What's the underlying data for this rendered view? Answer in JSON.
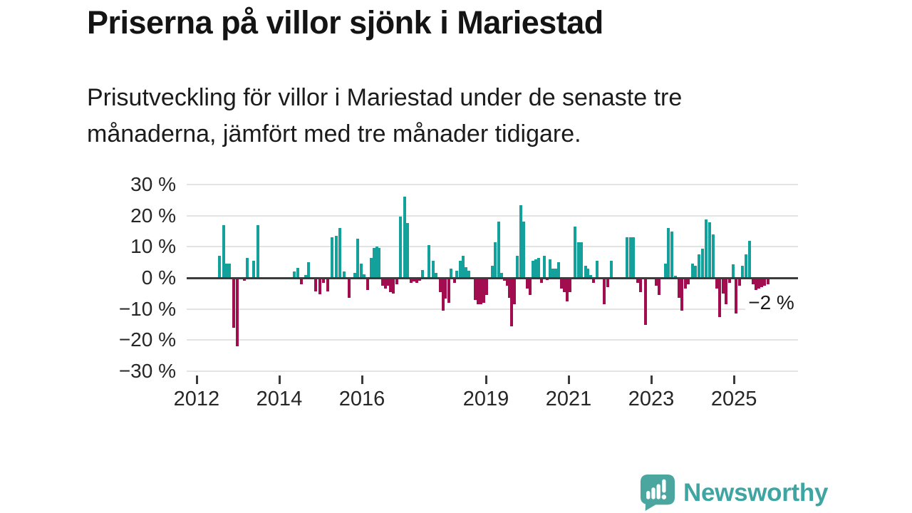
{
  "header": {
    "title": "Priserna på villor sjönk i Mariestad",
    "subtitle_line1": "Prisutveckling för villor i Mariestad under de senaste tre",
    "subtitle_line2": "månaderna, jämfört med tre månader tidigare."
  },
  "branding": {
    "name": "Newsworthy",
    "icon": "newsworthy-speech-bubble-chart-icon",
    "icon_color": "#4ba6a0",
    "text_color": "#3fa5a2"
  },
  "chart_data": {
    "type": "bar",
    "title": "Prisutveckling för villor i Mariestad, 3 månader jämfört med tre månader tidigare",
    "unit": "%",
    "grid": true,
    "colors": {
      "positive": "#14a09b",
      "negative": "#a20d50",
      "zero_line": "#3b3b3b",
      "gridline": "#e3e3e3"
    },
    "x_axis": {
      "min": 2011.76,
      "max": 2026.55
    },
    "y_axis": {
      "min": -30,
      "max": 30,
      "step": 10,
      "ticks": [
        {
          "value": 30,
          "label": "30 %"
        },
        {
          "value": 20,
          "label": "20 %"
        },
        {
          "value": 10,
          "label": "10 %"
        },
        {
          "value": 0,
          "label": "0 %"
        },
        {
          "value": -10,
          "label": "−10 %"
        },
        {
          "value": -20,
          "label": "−20 %"
        },
        {
          "value": -30,
          "label": "−30 %"
        }
      ]
    },
    "x_ticks": [
      {
        "year": 2012,
        "label": "2012"
      },
      {
        "year": 2014,
        "label": "2014"
      },
      {
        "year": 2016,
        "label": "2016"
      },
      {
        "year": 2019,
        "label": "2019"
      },
      {
        "year": 2021,
        "label": "2021"
      },
      {
        "year": 2023,
        "label": "2023"
      },
      {
        "year": 2025,
        "label": "2025"
      }
    ],
    "annotation": {
      "text": "−2 %",
      "x": 2025.83,
      "value": -2
    },
    "points": [
      [
        2012.55,
        7
      ],
      [
        2012.66,
        17
      ],
      [
        2012.72,
        4.5
      ],
      [
        2012.79,
        4.5
      ],
      [
        2012.9,
        -16
      ],
      [
        2012.98,
        -22
      ],
      [
        2013.16,
        -1
      ],
      [
        2013.22,
        6.5
      ],
      [
        2013.38,
        5.5
      ],
      [
        2013.48,
        17
      ],
      [
        2014.36,
        2
      ],
      [
        2014.45,
        3.2
      ],
      [
        2014.53,
        -2
      ],
      [
        2014.64,
        1
      ],
      [
        2014.71,
        5
      ],
      [
        2014.88,
        -4.4
      ],
      [
        2014.98,
        -5.2
      ],
      [
        2015.07,
        -1.5
      ],
      [
        2015.17,
        -4.4
      ],
      [
        2015.28,
        13
      ],
      [
        2015.38,
        13.5
      ],
      [
        2015.47,
        16
      ],
      [
        2015.57,
        2
      ],
      [
        2015.69,
        -6.5
      ],
      [
        2015.83,
        1.5
      ],
      [
        2015.9,
        12.5
      ],
      [
        2015.98,
        4.6
      ],
      [
        2016.05,
        1.2
      ],
      [
        2016.14,
        -4
      ],
      [
        2016.22,
        6.4
      ],
      [
        2016.29,
        9.6
      ],
      [
        2016.36,
        10
      ],
      [
        2016.41,
        9.6
      ],
      [
        2016.5,
        -2.6
      ],
      [
        2016.57,
        -3.4
      ],
      [
        2016.62,
        -2.6
      ],
      [
        2016.69,
        -4.5
      ],
      [
        2016.76,
        -5
      ],
      [
        2016.84,
        -2
      ],
      [
        2016.93,
        19.7
      ],
      [
        2017.03,
        26
      ],
      [
        2017.1,
        17.7
      ],
      [
        2017.19,
        -1.5
      ],
      [
        2017.26,
        -1.2
      ],
      [
        2017.33,
        -1.6
      ],
      [
        2017.4,
        -1
      ],
      [
        2017.47,
        2.5
      ],
      [
        2017.62,
        10.6
      ],
      [
        2017.72,
        5.6
      ],
      [
        2017.79,
        1.6
      ],
      [
        2017.9,
        -4.6
      ],
      [
        2017.97,
        -10.6
      ],
      [
        2018.02,
        -6.6
      ],
      [
        2018.1,
        -8.1
      ],
      [
        2018.16,
        3
      ],
      [
        2018.24,
        -1.6
      ],
      [
        2018.29,
        2.4
      ],
      [
        2018.38,
        5.4
      ],
      [
        2018.45,
        7
      ],
      [
        2018.52,
        3.5
      ],
      [
        2018.59,
        2.4
      ],
      [
        2018.74,
        -7
      ],
      [
        2018.81,
        -8.4
      ],
      [
        2018.88,
        -8.4
      ],
      [
        2018.95,
        -8
      ],
      [
        2019.02,
        -5.5
      ],
      [
        2019.16,
        4
      ],
      [
        2019.22,
        11.5
      ],
      [
        2019.31,
        18
      ],
      [
        2019.38,
        1.5
      ],
      [
        2019.45,
        -1
      ],
      [
        2019.52,
        -2.5
      ],
      [
        2019.57,
        -6.5
      ],
      [
        2019.62,
        -15.5
      ],
      [
        2019.69,
        -8.5
      ],
      [
        2019.76,
        7
      ],
      [
        2019.84,
        23.3
      ],
      [
        2019.91,
        18
      ],
      [
        2020.0,
        -3.5
      ],
      [
        2020.07,
        -5.5
      ],
      [
        2020.14,
        5.5
      ],
      [
        2020.21,
        6
      ],
      [
        2020.28,
        6.5
      ],
      [
        2020.34,
        -1.5
      ],
      [
        2020.41,
        7
      ],
      [
        2020.48,
        -0.8
      ],
      [
        2020.55,
        6
      ],
      [
        2020.62,
        3
      ],
      [
        2020.69,
        3
      ],
      [
        2020.76,
        5
      ],
      [
        2020.83,
        -3.5
      ],
      [
        2020.9,
        -4.5
      ],
      [
        2020.97,
        -7.5
      ],
      [
        2021.03,
        -4.5
      ],
      [
        2021.16,
        16.5
      ],
      [
        2021.24,
        11.5
      ],
      [
        2021.31,
        11.5
      ],
      [
        2021.41,
        4
      ],
      [
        2021.47,
        3
      ],
      [
        2021.53,
        1
      ],
      [
        2021.6,
        -1.5
      ],
      [
        2021.69,
        5.5
      ],
      [
        2021.86,
        -8.5
      ],
      [
        2021.95,
        -3
      ],
      [
        2022.03,
        5.5
      ],
      [
        2022.41,
        13
      ],
      [
        2022.5,
        13
      ],
      [
        2022.57,
        13
      ],
      [
        2022.67,
        -1.5
      ],
      [
        2022.74,
        -4.5
      ],
      [
        2022.86,
        -15
      ],
      [
        2023.12,
        -2.5
      ],
      [
        2023.19,
        -5.5
      ],
      [
        2023.34,
        4.5
      ],
      [
        2023.41,
        16
      ],
      [
        2023.5,
        15
      ],
      [
        2023.59,
        0.8
      ],
      [
        2023.67,
        -6.5
      ],
      [
        2023.74,
        -10.5
      ],
      [
        2023.83,
        -3.5
      ],
      [
        2023.9,
        -2
      ],
      [
        2024.0,
        4.5
      ],
      [
        2024.07,
        4
      ],
      [
        2024.16,
        7.5
      ],
      [
        2024.24,
        9.5
      ],
      [
        2024.33,
        18.7
      ],
      [
        2024.41,
        17.8
      ],
      [
        2024.5,
        14
      ],
      [
        2024.59,
        -3.5
      ],
      [
        2024.66,
        -12.5
      ],
      [
        2024.74,
        -5
      ],
      [
        2024.81,
        -8.5
      ],
      [
        2024.9,
        -1.5
      ],
      [
        2024.98,
        4.3
      ],
      [
        2025.05,
        -11.5
      ],
      [
        2025.14,
        -2.5
      ],
      [
        2025.21,
        4
      ],
      [
        2025.29,
        7.5
      ],
      [
        2025.38,
        12
      ],
      [
        2025.47,
        -2
      ],
      [
        2025.53,
        -4
      ],
      [
        2025.6,
        -3.5
      ],
      [
        2025.67,
        -3
      ],
      [
        2025.74,
        -2.5
      ],
      [
        2025.83,
        -2
      ]
    ]
  }
}
